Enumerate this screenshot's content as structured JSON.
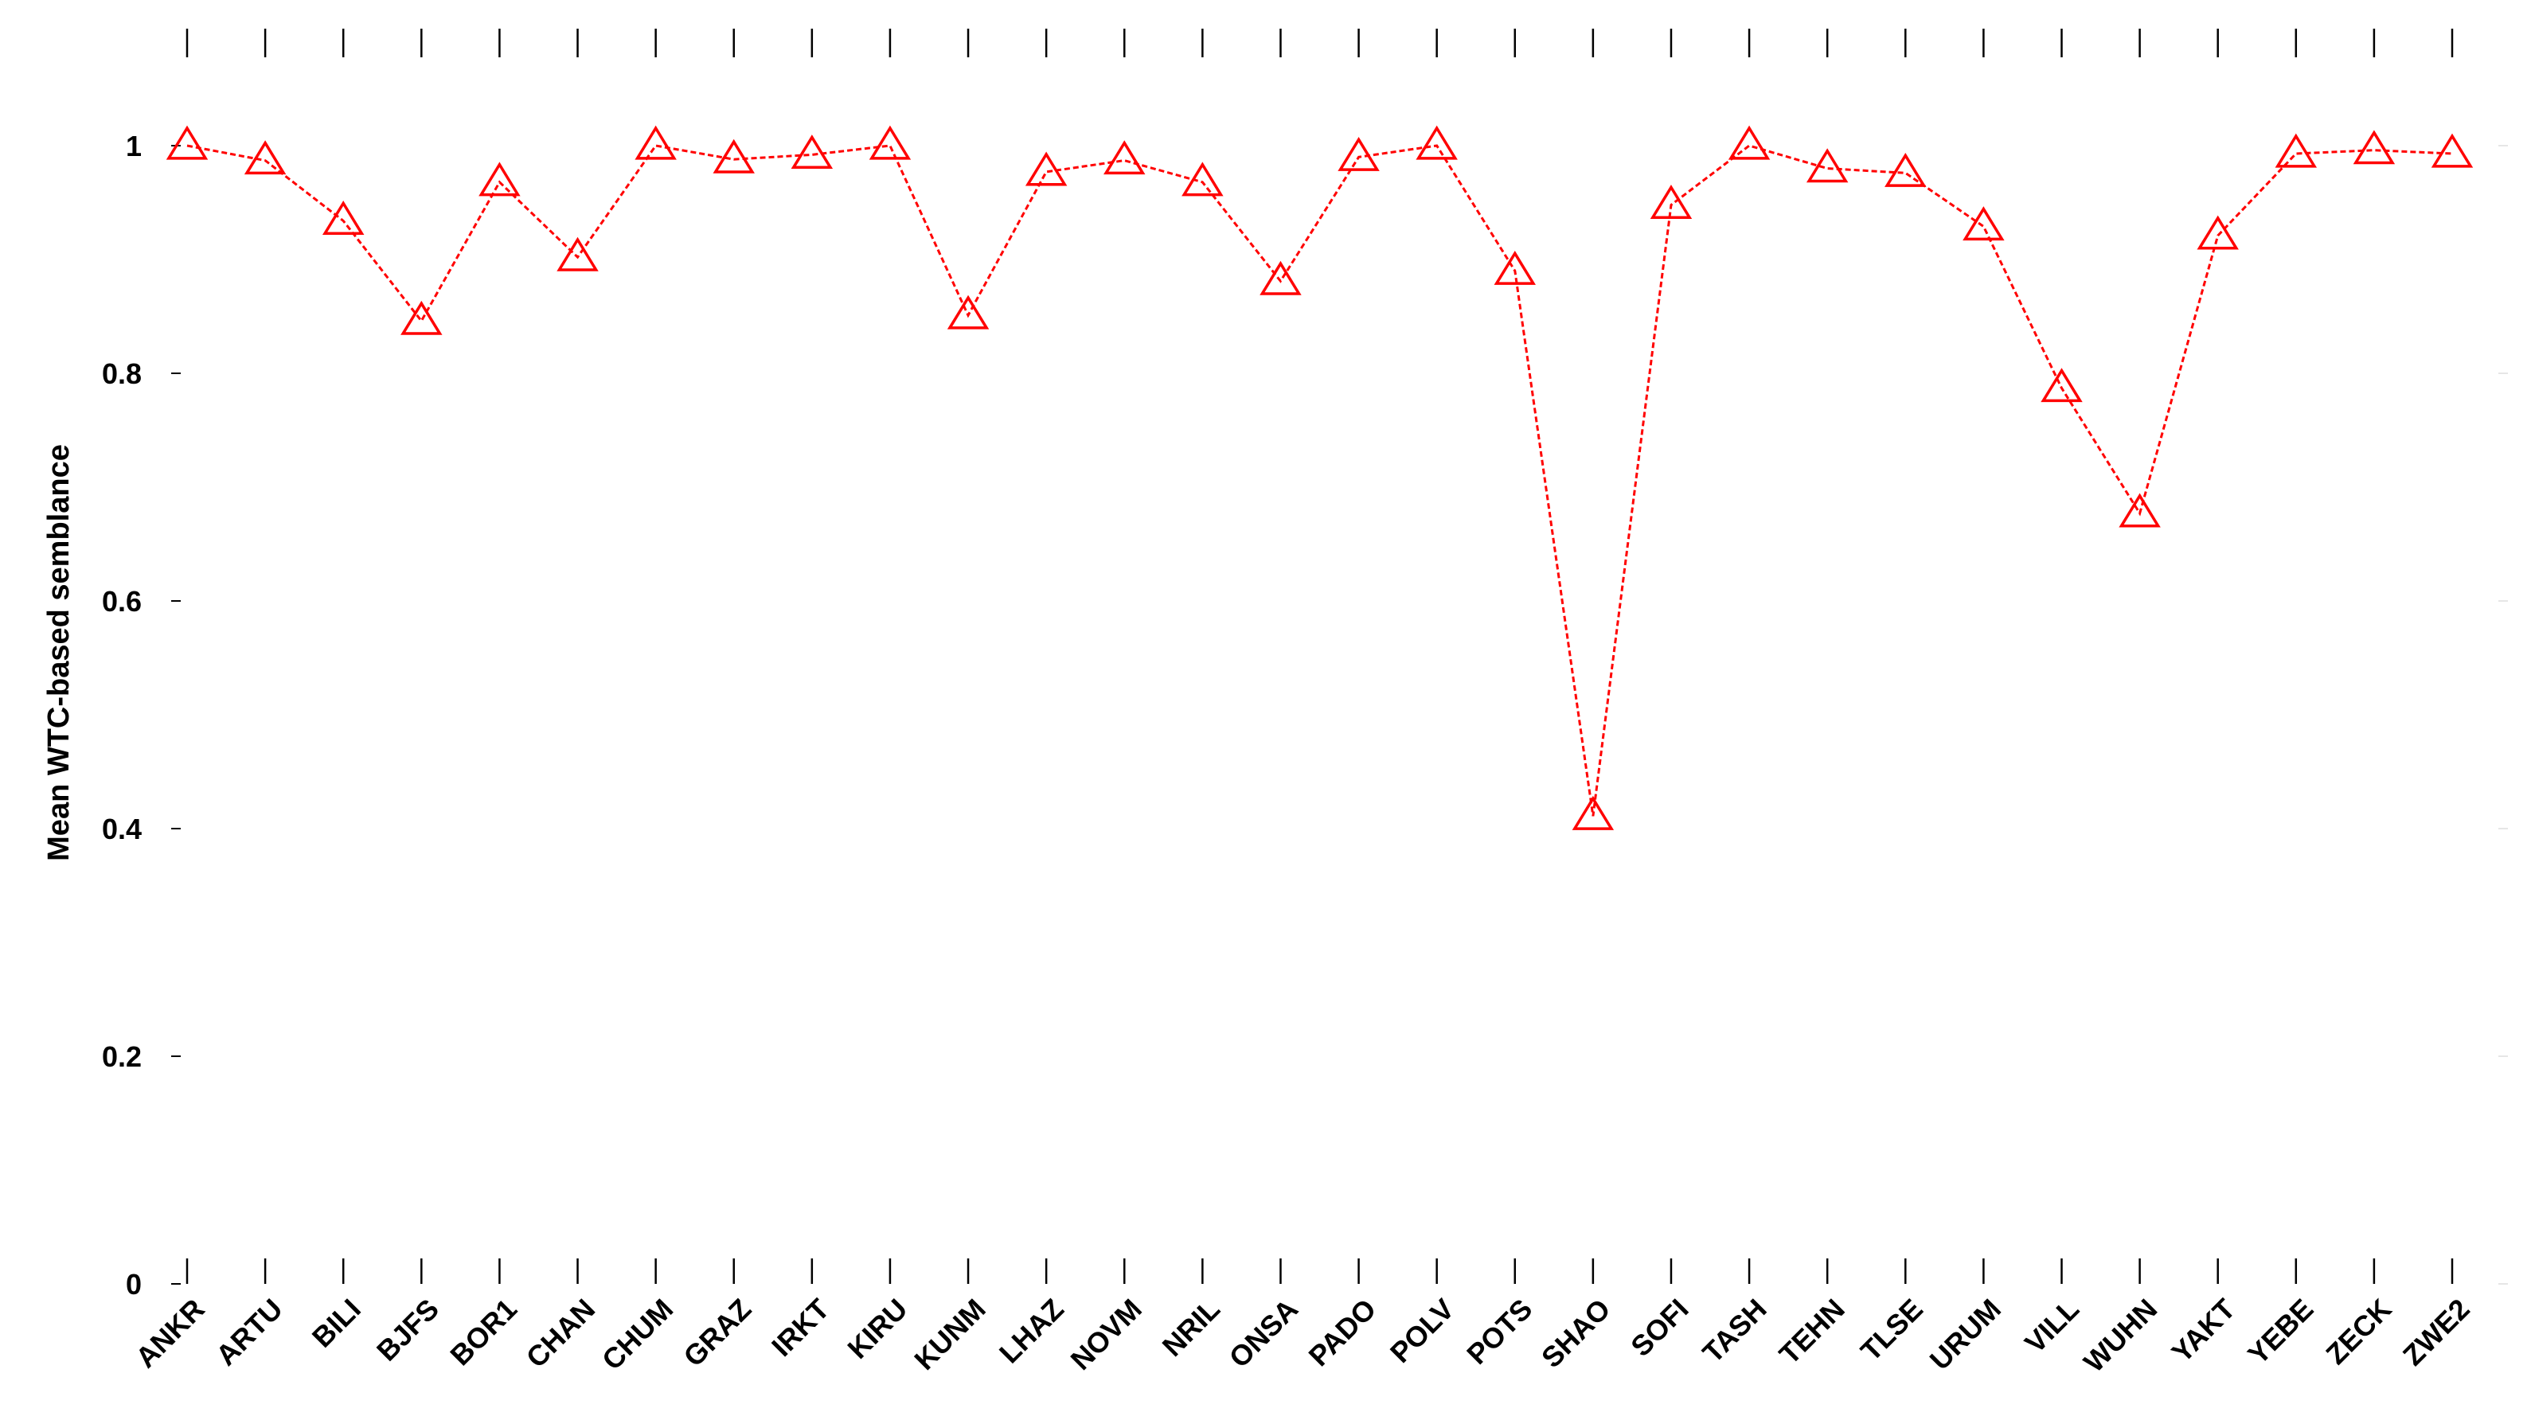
{
  "chart_data": {
    "type": "line",
    "title": "",
    "xlabel": "",
    "ylabel": "Mean WTC-based semblance",
    "ylim": [
      0,
      1.1
    ],
    "yticks": [
      0,
      0.2,
      0.4,
      0.6,
      0.8,
      1
    ],
    "ytick_labels": [
      "0",
      "0.2",
      "0.4",
      "0.6",
      "0.8",
      "1"
    ],
    "grid": false,
    "legend": "none",
    "color": "#ff0000",
    "marker": "triangle",
    "line_style": "dashed",
    "categories": [
      "ANKR",
      "ARTU",
      "BILI",
      "BJFS",
      "BOR1",
      "CHAN",
      "CHUM",
      "GRAZ",
      "IRKT",
      "KIRU",
      "KUNM",
      "LHAZ",
      "NOVM",
      "NRIL",
      "ONSA",
      "PADO",
      "POLV",
      "POTS",
      "SHAO",
      "SOFI",
      "TASH",
      "TEHN",
      "TLSE",
      "URUM",
      "VILL",
      "WUHN",
      "YAKT",
      "YEBE",
      "ZECK",
      "ZWE2"
    ],
    "values": [
      1.0,
      0.987,
      0.934,
      0.846,
      0.968,
      0.902,
      1.0,
      0.988,
      0.992,
      1.0,
      0.851,
      0.977,
      0.987,
      0.968,
      0.881,
      0.99,
      1.0,
      0.89,
      0.411,
      0.948,
      1.0,
      0.98,
      0.976,
      0.929,
      0.787,
      0.677,
      0.921,
      0.993,
      0.996,
      0.993
    ]
  }
}
